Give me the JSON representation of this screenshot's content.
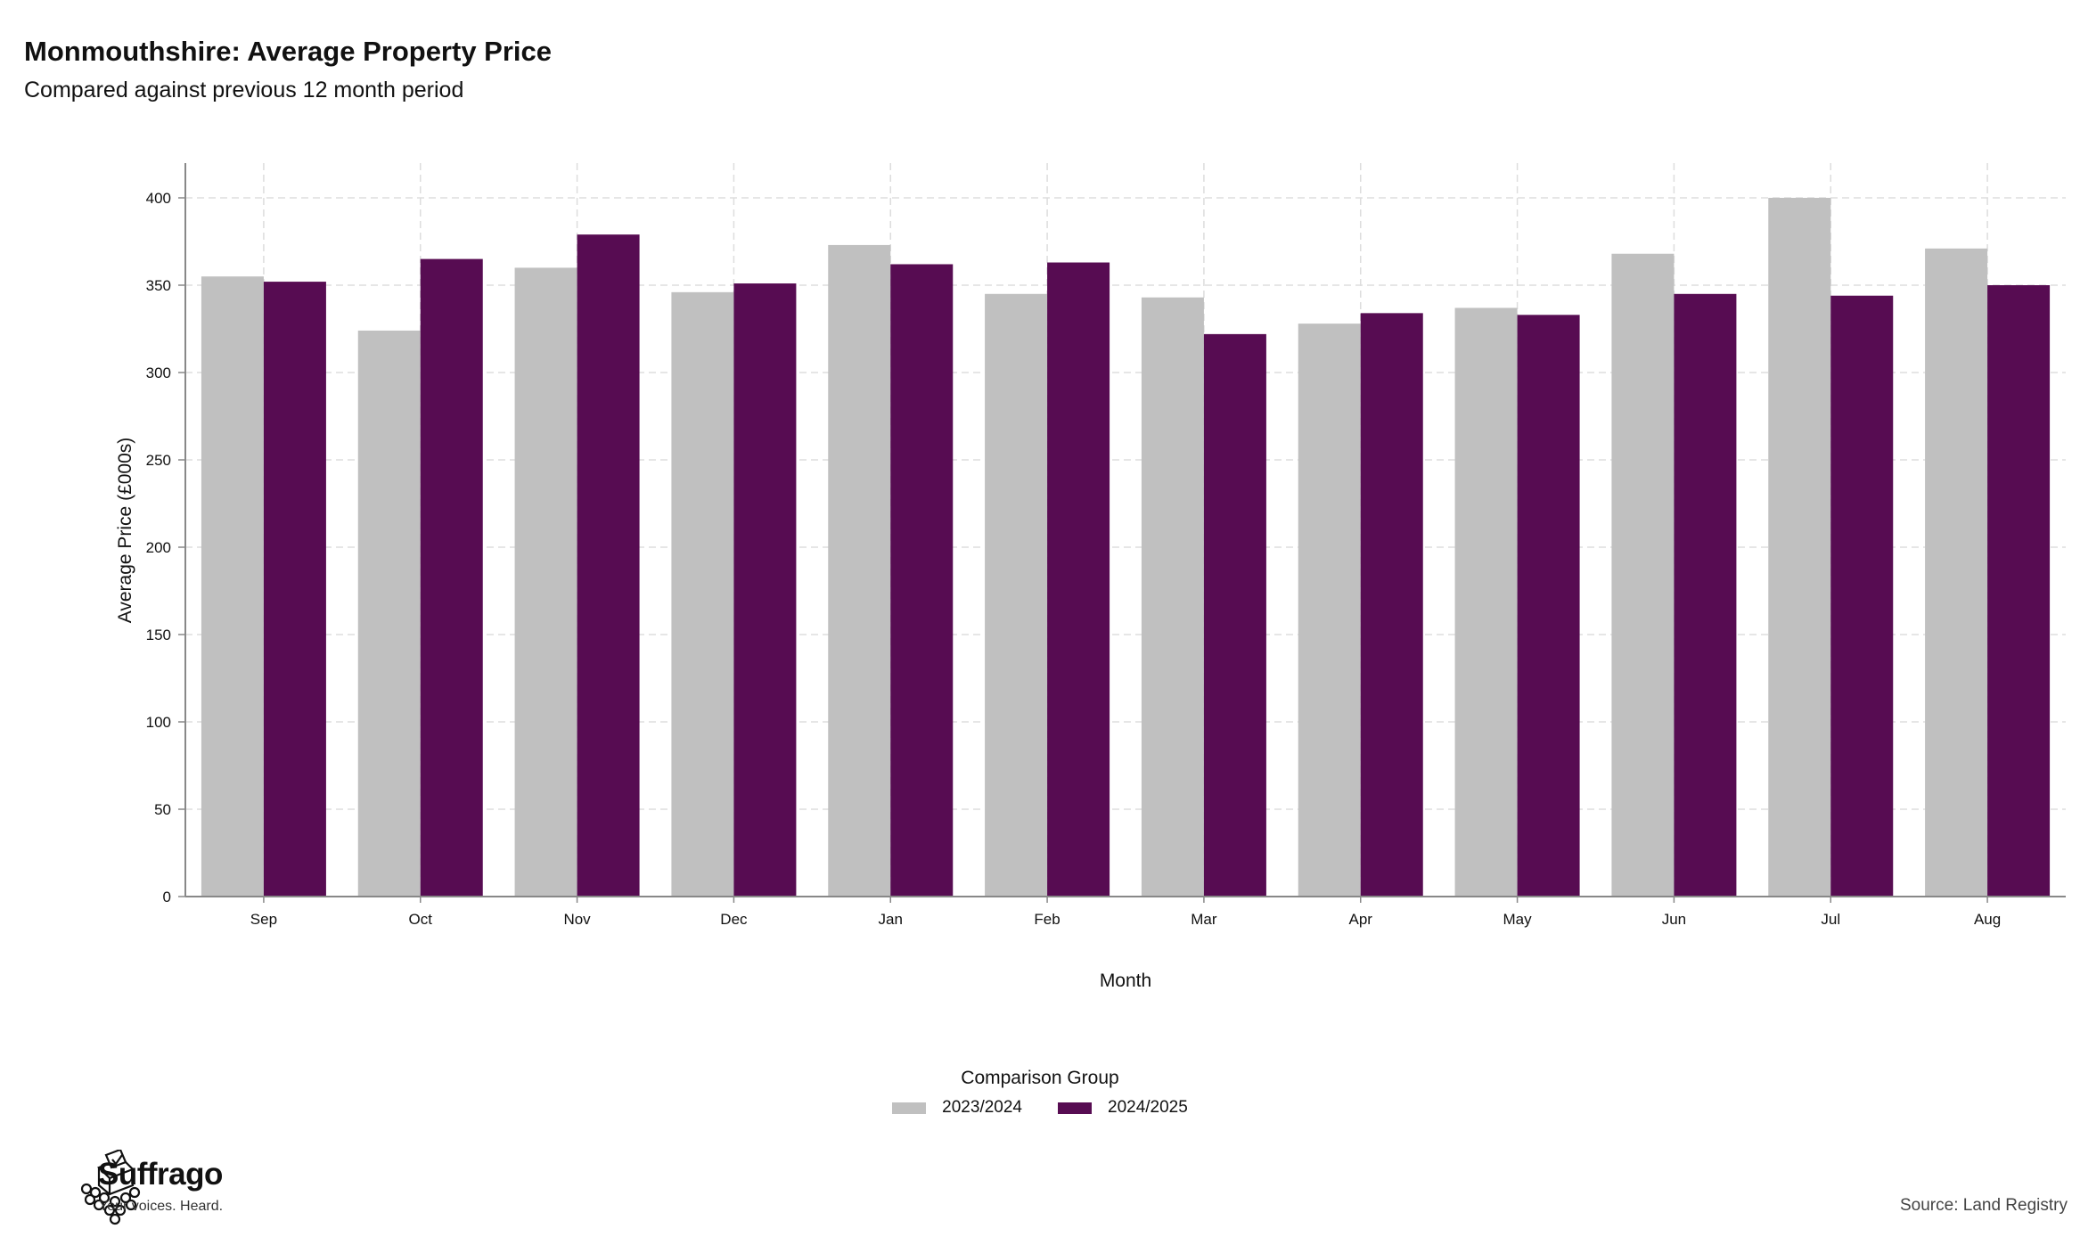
{
  "colors": {
    "series_2023_2024": "#c0c0c0",
    "series_2024_2025": "#570c52",
    "grid": "#dddddd",
    "axis": "#888888"
  },
  "brand": {
    "name": "Suffrago",
    "tagline": "Your voices. Heard.",
    "icon": "ballot-box-crowd-icon"
  },
  "source": "Source: Land Registry",
  "chart_data": {
    "type": "bar",
    "title": "Monmouthshire: Average Property Price",
    "subtitle": "Compared against previous 12 month period",
    "xlabel": "Month",
    "ylabel": "Average Price (£000s)",
    "ylim": [
      0,
      400
    ],
    "yticks": [
      0,
      50,
      100,
      150,
      200,
      250,
      300,
      350,
      400
    ],
    "grid": true,
    "legend_title": "Comparison Group",
    "legend_position": "bottom",
    "categories": [
      "Sep",
      "Oct",
      "Nov",
      "Dec",
      "Jan",
      "Feb",
      "Mar",
      "Apr",
      "May",
      "Jun",
      "Jul",
      "Aug"
    ],
    "series": [
      {
        "name": "2023/2024",
        "color": "#c0c0c0",
        "values": [
          355,
          324,
          360,
          346,
          373,
          345,
          343,
          328,
          337,
          368,
          400,
          371
        ]
      },
      {
        "name": "2024/2025",
        "color": "#570c52",
        "values": [
          352,
          365,
          379,
          351,
          362,
          363,
          322,
          334,
          333,
          345,
          344,
          350
        ]
      }
    ]
  }
}
